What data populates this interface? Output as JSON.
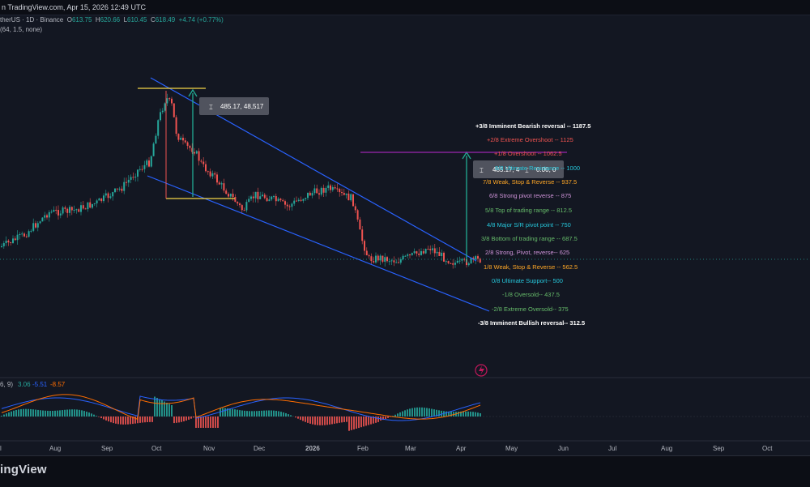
{
  "header": {
    "info": "n TradingView.com, Apr 15, 2026 12:49 UTC"
  },
  "symbol_line": {
    "name": "therUS · 1D · Binance",
    "open_label": "O",
    "open": "613.75",
    "high_label": "H",
    "high": "620.66",
    "low_label": "L",
    "low": "610.45",
    "close_label": "C",
    "close": "618.49",
    "change": "+4.74 (+0.77%)"
  },
  "indicator1": "(64, 1.5, none)",
  "macd_legend": {
    "params": "6, 9)",
    "v1": "3.06",
    "v2": "-5.51",
    "v3": "-8.57"
  },
  "measure_label_1": "485.17, 48,517",
  "measure_label_2a": "485.17, 4",
  "measure_label_2b": "0.00, 0",
  "murrey_levels": [
    {
      "text": "+3/8 Imminent Bearish reversal --  1187.5",
      "color": "#ffffff"
    },
    {
      "text": "+2/8 Extreme Overshoot --  1125",
      "color": "#ef5350"
    },
    {
      "text": "+1/8 Overshoot --  1062.5",
      "color": "#ef5350"
    },
    {
      "text": "8/8 Ultimate Resistance --  1000",
      "color": "#26c6da"
    },
    {
      "text": "7/8 Weak, Stop & Reverse --  937.5",
      "color": "#ffa726"
    },
    {
      "text": "6/8 Strong pivot reverse --  875",
      "color": "#ce93d8"
    },
    {
      "text": "5/8 Top of trading range --  812.5",
      "color": "#66bb6a"
    },
    {
      "text": "4/8 Major S/R pivot point --  750",
      "color": "#26c6da"
    },
    {
      "text": "3/8 Bottom of trading range --  687.5",
      "color": "#66bb6a"
    },
    {
      "text": "2/8 Strong, Pivot, reverse--  625",
      "color": "#ce93d8"
    },
    {
      "text": "1/8 Weak, Stop & Reverse --  562.5",
      "color": "#ffa726"
    },
    {
      "text": "0/8 Ultimate Support--  500",
      "color": "#26c6da"
    },
    {
      "text": "-1/8 Oversold--  437.5",
      "color": "#66bb6a"
    },
    {
      "text": "-2/8 Extreme Oversold--  375",
      "color": "#66bb6a"
    },
    {
      "text": "-3/8 Imminent Bullish reversal--  312.5",
      "color": "#ffffff"
    }
  ],
  "x_axis": [
    "l",
    "Aug",
    "Sep",
    "Oct",
    "Nov",
    "Dec",
    "2026",
    "Feb",
    "Mar",
    "Apr",
    "May",
    "Jun",
    "Jul",
    "Aug",
    "Sep",
    "Oct"
  ],
  "footer": {
    "brand": "ingView"
  },
  "colors": {
    "up": "#26a69a",
    "down": "#ef5350",
    "channel": "#2962ff",
    "macd": "#2962ff",
    "signal": "#ff6d00",
    "measure": "#22ab94"
  }
}
